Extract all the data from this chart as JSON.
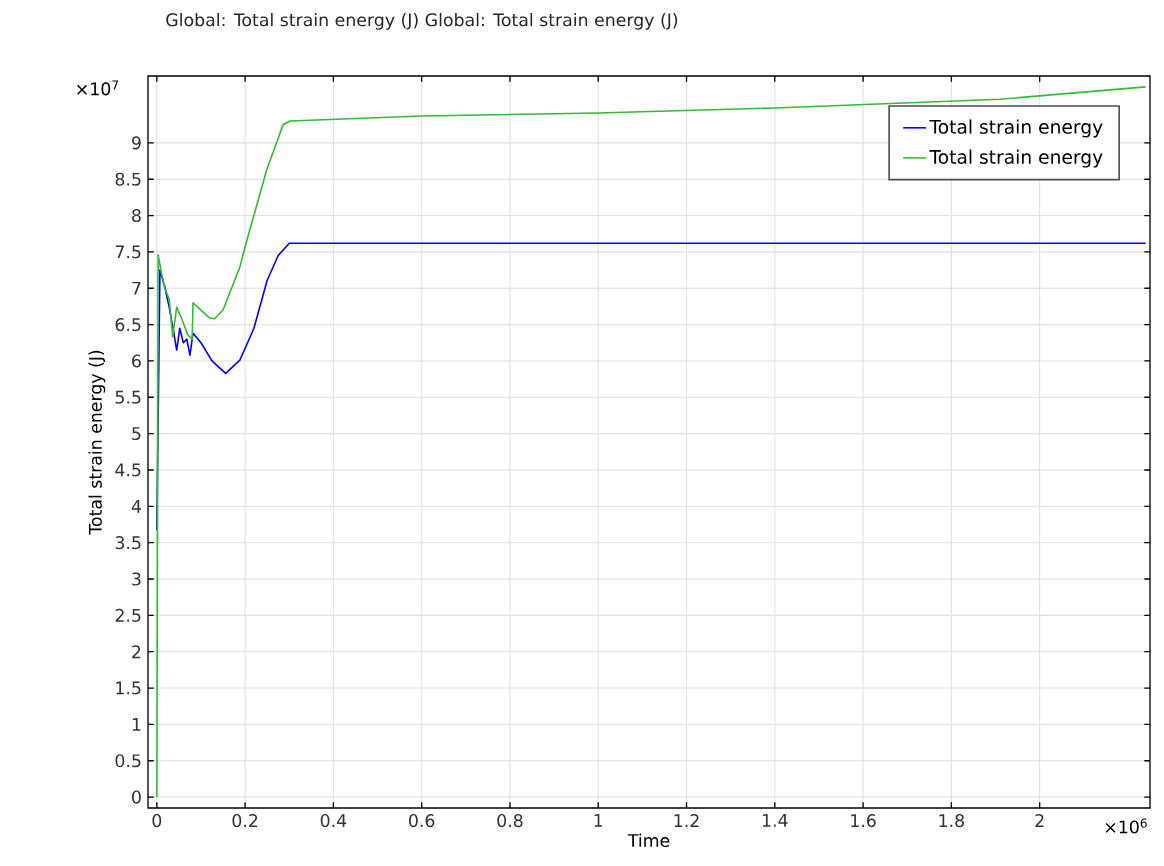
{
  "chart_data": {
    "type": "line",
    "title": "Global: Total strain energy (J)  Global: Total strain energy (J)",
    "xlabel": "Time",
    "ylabel": "Total strain energy (J)",
    "annotations": [
      "×10$^{7}$",
      "×10$^{6}$"
    ],
    "xlim": [
      -0.02,
      2.25
    ],
    "ylim": [
      -0.15,
      9.92
    ],
    "xticks": [
      0,
      0.2,
      0.4,
      0.6,
      0.8,
      1,
      1.2,
      1.4,
      1.6,
      1.8,
      2
    ],
    "yticks": [
      0,
      0.5,
      1,
      1.5,
      2,
      2.5,
      3,
      3.5,
      4,
      4.5,
      5,
      5.5,
      6,
      6.5,
      7,
      7.5,
      8,
      8.5,
      9
    ],
    "grid": true,
    "legend": "top right",
    "series": [
      {
        "name": "Total strain energy",
        "color": "#0000ff",
        "x": [
          0,
          0.007,
          0.012,
          0.018,
          0.028,
          0.038,
          0.045,
          0.052,
          0.06,
          0.068,
          0.075,
          0.082,
          0.1,
          0.125,
          0.156,
          0.188,
          0.22,
          0.25,
          0.275,
          0.3,
          2.24
        ],
        "values": [
          3.67,
          7.25,
          7.14,
          7.02,
          6.74,
          6.4,
          6.15,
          6.45,
          6.25,
          6.3,
          6.08,
          6.38,
          6.25,
          6.0,
          5.83,
          6.01,
          6.45,
          7.11,
          7.45,
          7.62,
          7.62
        ]
      },
      {
        "name": "Total strain energy",
        "color": "#33bb33",
        "x": [
          0,
          0.003,
          0.01,
          0.018,
          0.028,
          0.036,
          0.045,
          0.055,
          0.07,
          0.08,
          0.082,
          0.1,
          0.12,
          0.131,
          0.15,
          0.188,
          0.204,
          0.249,
          0.286,
          0.302,
          0.6,
          1,
          1.4,
          1.91,
          2.24
        ],
        "values": [
          0,
          7.46,
          7.22,
          7.0,
          6.85,
          6.33,
          6.74,
          6.6,
          6.36,
          6.3,
          6.8,
          6.7,
          6.59,
          6.58,
          6.7,
          7.29,
          7.66,
          8.63,
          9.25,
          9.3,
          9.37,
          9.41,
          9.48,
          9.6,
          9.77
        ]
      }
    ]
  }
}
